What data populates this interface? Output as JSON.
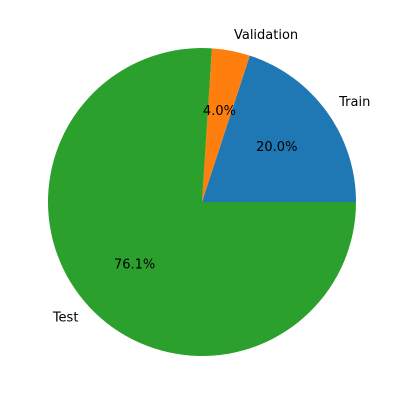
{
  "chart_data": {
    "type": "pie",
    "title": "",
    "categories": [
      "Train",
      "Validation",
      "Test"
    ],
    "values": [
      20.0,
      4.0,
      76.1
    ],
    "percent_labels": [
      "20.0%",
      "4.0%",
      "76.1%"
    ],
    "colors": [
      "#1f77b4",
      "#ff7f0e",
      "#2ca02c"
    ],
    "start_angle_deg": 0,
    "direction": "counterclockwise",
    "legend": "none"
  }
}
